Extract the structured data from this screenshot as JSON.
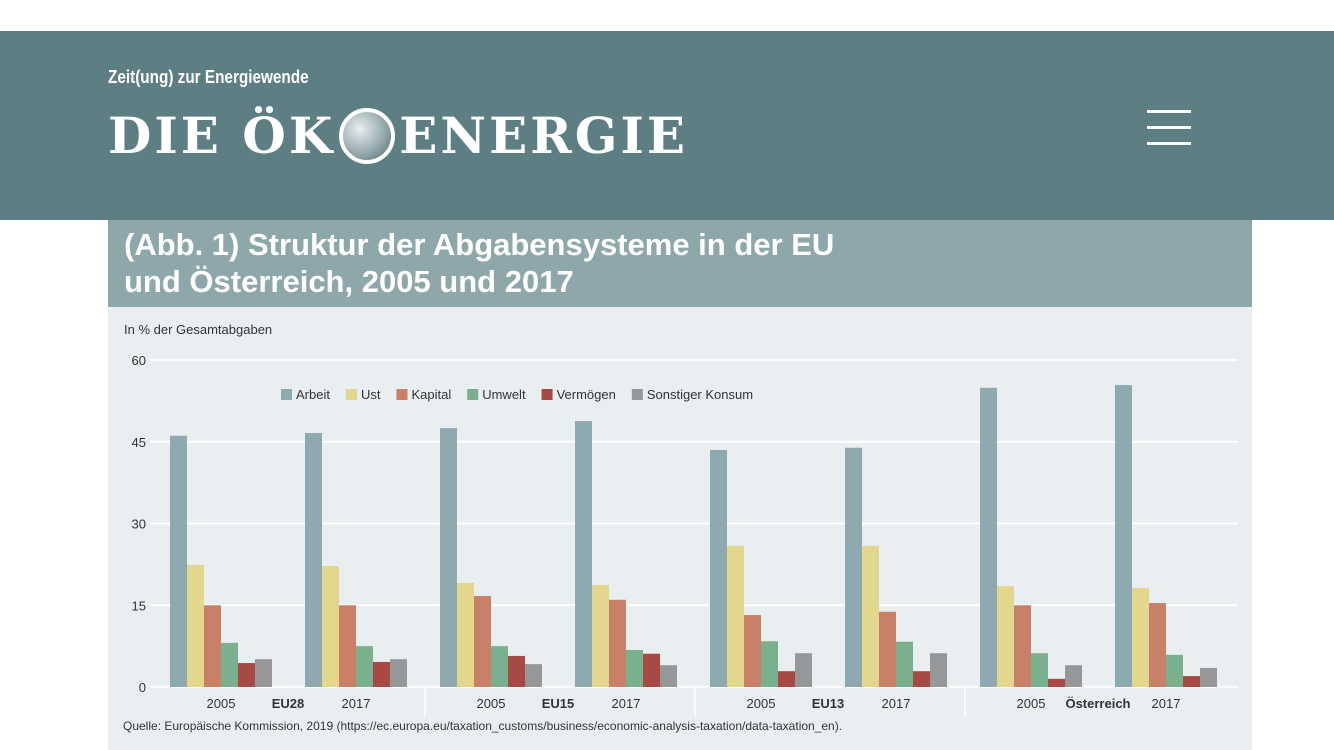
{
  "header": {
    "tagline": "Zeit(ung) zur Energiewende",
    "logo_left": "DIE ÖK",
    "logo_right": "ENERGIE",
    "menu_icon": "hamburger-menu-icon"
  },
  "chart_data": {
    "type": "bar",
    "title": "(Abb. 1) Struktur der Abgabensysteme in der EU und Österreich, 2005 und 2017",
    "title_line1": "(Abb. 1) Struktur der Abgabensysteme in der EU",
    "title_line2": "und Österreich, 2005 und 2017",
    "ylabel": "In % der Gesamtabgaben",
    "ylim": [
      0,
      60
    ],
    "yticks": [
      0,
      15,
      30,
      45,
      60
    ],
    "grid": true,
    "legend_position": "top",
    "groups": [
      "EU28",
      "EU15",
      "EU13",
      "Österreich"
    ],
    "years": [
      "2005",
      "2017"
    ],
    "series": [
      {
        "name": "Arbeit",
        "color": "#8eaab0",
        "values": [
          46.1,
          46.6,
          47.5,
          48.8,
          43.5,
          43.9,
          54.9,
          55.4
        ]
      },
      {
        "name": "Ust",
        "color": "#e3d68d",
        "values": [
          22.4,
          22.2,
          19.1,
          18.7,
          25.9,
          25.9,
          18.5,
          18.2
        ]
      },
      {
        "name": "Kapital",
        "color": "#c98068",
        "values": [
          15.0,
          15.0,
          16.7,
          16.0,
          13.2,
          13.8,
          15.0,
          15.4
        ]
      },
      {
        "name": "Umwelt",
        "color": "#7bb08f",
        "values": [
          8.1,
          7.5,
          7.5,
          6.8,
          8.4,
          8.3,
          6.2,
          5.9
        ]
      },
      {
        "name": "Vermögen",
        "color": "#a84a44",
        "values": [
          4.4,
          4.6,
          5.7,
          6.1,
          2.9,
          2.9,
          1.5,
          2.0
        ]
      },
      {
        "name": "Sonstiger Konsum",
        "color": "#959799",
        "values": [
          5.1,
          5.1,
          4.2,
          4.0,
          6.2,
          6.2,
          4.0,
          3.5
        ]
      }
    ],
    "source": "Quelle: Europäische Kommission, 2019 (https://ec.europa.eu/taxation_customs/business/economic-analysis-taxation/data-taxation_en)."
  }
}
